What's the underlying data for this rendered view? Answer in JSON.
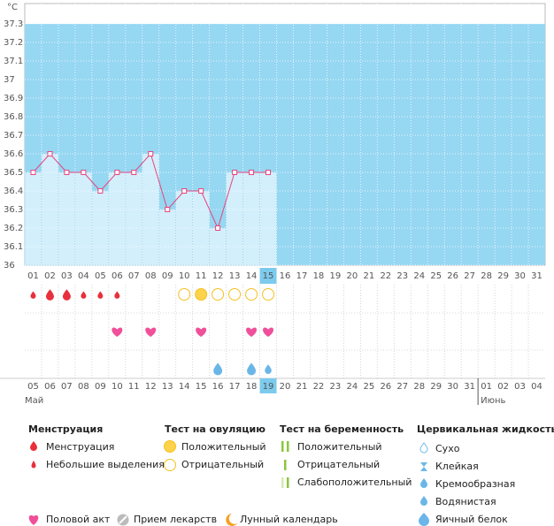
{
  "chart_data": {
    "type": "line",
    "y_label": "°C",
    "categories": [
      "01",
      "02",
      "03",
      "04",
      "05",
      "06",
      "07",
      "08",
      "09",
      "10",
      "11",
      "12",
      "13",
      "14",
      "15",
      "16",
      "17",
      "18",
      "19",
      "20",
      "21",
      "22",
      "23",
      "24",
      "25",
      "26",
      "27",
      "28",
      "29",
      "30",
      "31"
    ],
    "values": [
      36.5,
      36.6,
      36.5,
      36.5,
      36.4,
      36.5,
      36.5,
      36.6,
      36.3,
      36.4,
      36.4,
      36.2,
      36.5,
      36.5,
      36.5,
      null,
      null,
      null,
      null,
      null,
      null,
      null,
      null,
      null,
      null,
      null,
      null,
      null,
      null,
      null,
      null
    ],
    "ylim": [
      36,
      37.3
    ],
    "yticks": [
      36,
      36.1,
      36.2,
      36.3,
      36.4,
      36.5,
      36.6,
      36.7,
      36.8,
      36.9,
      37,
      37.1,
      37.2,
      37.3
    ],
    "color": "#e8457d",
    "selected_index": 14,
    "menstruation": [
      "light",
      "heavy",
      "heavy",
      "light",
      "light",
      "light",
      null,
      null,
      null,
      null,
      null,
      null,
      null,
      null,
      null,
      null,
      null,
      null,
      null,
      null,
      null,
      null,
      null,
      null,
      null,
      null,
      null,
      null,
      null,
      null,
      null
    ],
    "ovulation_test": [
      null,
      null,
      null,
      null,
      null,
      null,
      null,
      null,
      null,
      "negative",
      "positive",
      "negative",
      "negative",
      "negative",
      "negative",
      null,
      null,
      null,
      null,
      null,
      null,
      null,
      null,
      null,
      null,
      null,
      null,
      null,
      null,
      null,
      null
    ],
    "intercourse": [
      null,
      null,
      null,
      null,
      null,
      true,
      null,
      true,
      null,
      null,
      true,
      null,
      null,
      true,
      true,
      null,
      null,
      null,
      null,
      null,
      null,
      null,
      null,
      null,
      null,
      null,
      null,
      null,
      null,
      null,
      null
    ],
    "cervical_fluid": [
      null,
      null,
      null,
      null,
      null,
      null,
      null,
      null,
      null,
      null,
      null,
      "eggwhite",
      null,
      "eggwhite",
      "watery",
      null,
      null,
      null,
      null,
      null,
      null,
      null,
      null,
      null,
      null,
      null,
      null,
      null,
      null,
      null,
      null
    ]
  },
  "calendar": {
    "dates": [
      "05",
      "06",
      "07",
      "08",
      "09",
      "10",
      "11",
      "12",
      "13",
      "14",
      "15",
      "16",
      "17",
      "18",
      "19",
      "20",
      "21",
      "22",
      "23",
      "24",
      "25",
      "26",
      "27",
      "28",
      "29",
      "30",
      "31",
      "01",
      "02",
      "03",
      "04"
    ],
    "weekend": [
      false,
      false,
      true,
      true,
      false,
      false,
      false,
      false,
      false,
      true,
      true,
      false,
      false,
      false,
      false,
      false,
      true,
      true,
      false,
      false,
      false,
      false,
      false,
      true,
      true,
      false,
      false,
      false,
      false,
      false,
      true
    ],
    "months": [
      {
        "label": "Май",
        "index": 0
      },
      {
        "label": "Июнь",
        "index": 27
      }
    ]
  },
  "legend": {
    "menstruation": {
      "title": "Менструация",
      "items": [
        "Менструация",
        "Небольшие выделения"
      ]
    },
    "ovulation": {
      "title": "Тест на овуляцию",
      "items": [
        "Положительный",
        "Отрицательный"
      ]
    },
    "pregnancy": {
      "title": "Тест на беременность",
      "items": [
        "Положительный",
        "Отрицательный",
        "Слабоположительный"
      ]
    },
    "cervical": {
      "title": "Цервикальная жидкость",
      "items": [
        "Сухо",
        "Клейкая",
        "Кремообразная",
        "Водянистая",
        "Яичный белок"
      ]
    },
    "other": [
      "Половой акт",
      "Прием лекарств",
      "Лунный календарь"
    ]
  }
}
